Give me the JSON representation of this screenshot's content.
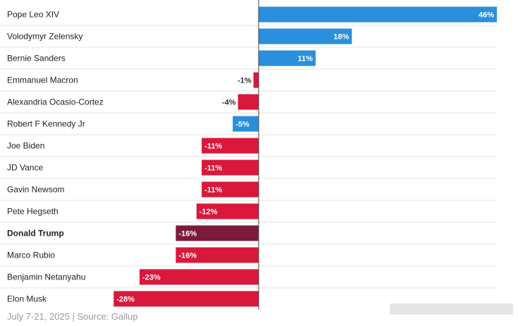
{
  "chart_data": {
    "type": "bar",
    "orientation": "horizontal",
    "categories": [
      "Pope Leo XIV",
      "Volodymyr Zelensky",
      "Bernie Sanders",
      "Emmanuel Macron",
      "Alexandria Ocasio-Cortez",
      "Robert F Kennedy Jr",
      "Joe Biden",
      "JD Vance",
      "Gavin Newsom",
      "Pete Hegseth",
      "Donald Trump",
      "Marco Rubio",
      "Benjamin Netanyahu",
      "Elon Musk"
    ],
    "values": [
      46,
      18,
      11,
      -1,
      -4,
      -5,
      -11,
      -11,
      -11,
      -12,
      -16,
      -16,
      -23,
      -28
    ],
    "value_labels": [
      "46%",
      "18%",
      "11%",
      "-1%",
      "-4%",
      "-5%",
      "-11%",
      "-11%",
      "-11%",
      "-12%",
      "-16%",
      "-16%",
      "-23%",
      "-28%"
    ],
    "bar_colors": [
      "#2a8fdc",
      "#2a8fdc",
      "#2a8fdc",
      "#d9183b",
      "#d9183b",
      "#2a8fdc",
      "#d9183b",
      "#d9183b",
      "#d9183b",
      "#d9183b",
      "#7a1a3c",
      "#d9183b",
      "#d9183b",
      "#d9183b"
    ],
    "highlight": "Donald Trump",
    "xlim": [
      -28,
      46
    ],
    "grid": "row separators"
  },
  "footer": {
    "source": "July 7-21, 2025 | Source: Gallup"
  }
}
